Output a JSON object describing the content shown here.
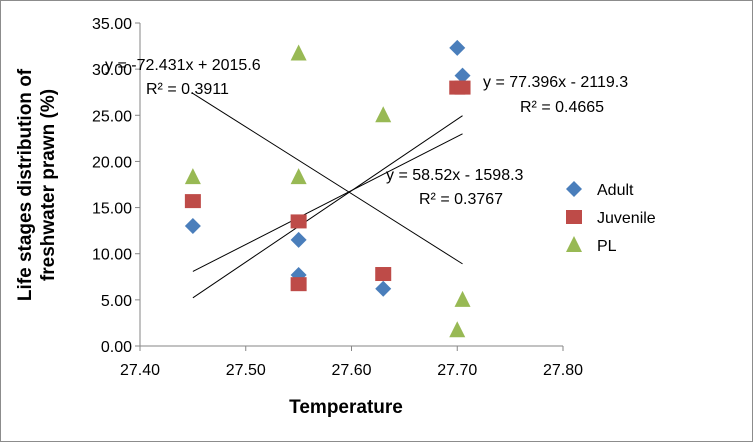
{
  "chart_data": {
    "type": "scatter",
    "title": "",
    "xlabel": "Temperature",
    "ylabel_lines": [
      "Life stages distribution of",
      "freshwater prawn (%)"
    ],
    "xlim": [
      27.4,
      27.8
    ],
    "ylim": [
      0,
      35
    ],
    "x_ticks": [
      27.4,
      27.5,
      27.6,
      27.7,
      27.8
    ],
    "y_ticks": [
      0,
      5,
      10,
      15,
      20,
      25,
      30,
      35
    ],
    "x_tick_labels": [
      "27.40",
      "27.50",
      "27.60",
      "27.70",
      "27.80"
    ],
    "y_tick_labels": [
      "0.00",
      "5.00",
      "10.00",
      "15.00",
      "20.00",
      "25.00",
      "30.00",
      "35.00"
    ],
    "grid": false,
    "legend_position": "right",
    "series": [
      {
        "name": "Adult",
        "marker": "diamond",
        "color": "#4a7ebb",
        "points": [
          [
            27.45,
            13.0
          ],
          [
            27.55,
            11.5
          ],
          [
            27.55,
            7.7
          ],
          [
            27.63,
            6.2
          ],
          [
            27.7,
            32.3
          ],
          [
            27.705,
            29.3
          ]
        ],
        "trendline": {
          "x_range": [
            27.45,
            27.705
          ],
          "equation": "y = 58.52x - 1598.3",
          "r2": "R² = 0.3767"
        }
      },
      {
        "name": "Juvenile",
        "marker": "square",
        "color": "#be4b48",
        "points": [
          [
            27.45,
            15.7
          ],
          [
            27.55,
            13.5
          ],
          [
            27.55,
            6.7
          ],
          [
            27.63,
            7.8
          ],
          [
            27.7,
            28.0
          ],
          [
            27.705,
            28.0
          ]
        ],
        "trendline": {
          "x_range": [
            27.45,
            27.705
          ],
          "equation": "y = 77.396x - 2119.3",
          "r2": "R² = 0.4665"
        }
      },
      {
        "name": "PL",
        "marker": "triangle",
        "color": "#98b954",
        "points": [
          [
            27.45,
            18.3
          ],
          [
            27.55,
            31.7
          ],
          [
            27.55,
            18.3
          ],
          [
            27.63,
            25.0
          ],
          [
            27.7,
            1.7
          ],
          [
            27.705,
            5.0
          ]
        ],
        "trendline": {
          "x_range": [
            27.45,
            27.705
          ],
          "equation": "y = -72.431x + 2015.6",
          "r2": "R² = 0.3911"
        }
      }
    ]
  }
}
